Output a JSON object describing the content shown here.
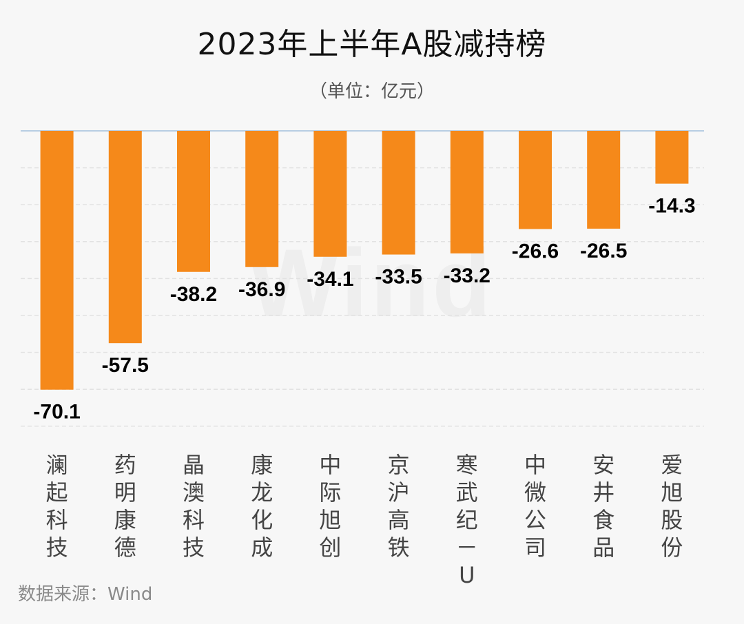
{
  "chart_data": {
    "type": "bar",
    "title": "2023年上半年A股减持榜",
    "subtitle": "（单位：亿元）",
    "categories": [
      "澜起科技",
      "药明康德",
      "晶澳科技",
      "康龙化成",
      "中际旭创",
      "京沪高铁",
      "寒武纪－U",
      "中微公司",
      "安井食品",
      "爱旭股份"
    ],
    "values": [
      -70.1,
      -57.5,
      -38.2,
      -36.9,
      -34.1,
      -33.5,
      -33.2,
      -26.6,
      -26.5,
      -14.3
    ],
    "value_labels": [
      "-70.1",
      "-57.5",
      "-38.2",
      "-36.9",
      "-34.1",
      "-33.5",
      "-33.2",
      "-26.6",
      "-26.5",
      "-14.3"
    ],
    "ylim": [
      -80,
      0
    ],
    "grid": true,
    "bar_color": "#f5891a",
    "source": "数据来源：Wind",
    "watermark": "Wind"
  }
}
